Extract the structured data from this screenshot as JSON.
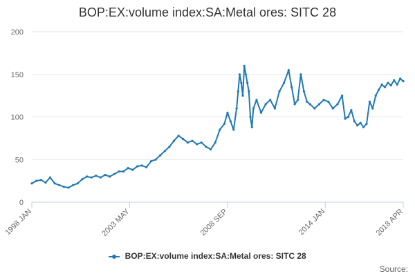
{
  "chart_data": {
    "type": "line",
    "title": "BOP:EX:volume index:SA:Metal ores: SITC 28",
    "xlabel": "",
    "ylabel": "",
    "ylim": [
      0,
      200
    ],
    "yticks": [
      0,
      50,
      100,
      150,
      200
    ],
    "x_tick_labels": [
      "1998 JAN",
      "2003 MAY",
      "2008 SEP",
      "2014 JAN",
      "2018 APR"
    ],
    "x_tick_month_index": [
      0,
      64,
      128,
      192,
      243
    ],
    "x_range_months": [
      0,
      243
    ],
    "series": [
      {
        "name": "BOP:EX:volume index:SA:Metal ores: SITC 28",
        "color": "#1f78b4",
        "points": [
          [
            0,
            22
          ],
          [
            3,
            25
          ],
          [
            6,
            26
          ],
          [
            9,
            23
          ],
          [
            12,
            29
          ],
          [
            15,
            22
          ],
          [
            18,
            20
          ],
          [
            21,
            18
          ],
          [
            24,
            17
          ],
          [
            27,
            20
          ],
          [
            30,
            22
          ],
          [
            33,
            27
          ],
          [
            36,
            30
          ],
          [
            39,
            29
          ],
          [
            42,
            31
          ],
          [
            45,
            29
          ],
          [
            48,
            32
          ],
          [
            51,
            30
          ],
          [
            54,
            33
          ],
          [
            57,
            36
          ],
          [
            60,
            36
          ],
          [
            63,
            40
          ],
          [
            66,
            38
          ],
          [
            69,
            42
          ],
          [
            72,
            43
          ],
          [
            75,
            41
          ],
          [
            78,
            48
          ],
          [
            81,
            50
          ],
          [
            84,
            55
          ],
          [
            87,
            60
          ],
          [
            90,
            65
          ],
          [
            93,
            72
          ],
          [
            96,
            78
          ],
          [
            99,
            74
          ],
          [
            102,
            70
          ],
          [
            105,
            72
          ],
          [
            108,
            68
          ],
          [
            111,
            70
          ],
          [
            114,
            65
          ],
          [
            117,
            62
          ],
          [
            120,
            70
          ],
          [
            123,
            85
          ],
          [
            126,
            92
          ],
          [
            128,
            105
          ],
          [
            130,
            95
          ],
          [
            132,
            85
          ],
          [
            134,
            110
          ],
          [
            135,
            130
          ],
          [
            136,
            150
          ],
          [
            137,
            140
          ],
          [
            138,
            125
          ],
          [
            139,
            160
          ],
          [
            140,
            150
          ],
          [
            141,
            140
          ],
          [
            142,
            130
          ],
          [
            143,
            100
          ],
          [
            144,
            88
          ],
          [
            145,
            110
          ],
          [
            147,
            120
          ],
          [
            150,
            105
          ],
          [
            153,
            115
          ],
          [
            156,
            120
          ],
          [
            159,
            110
          ],
          [
            162,
            130
          ],
          [
            165,
            140
          ],
          [
            168,
            155
          ],
          [
            170,
            135
          ],
          [
            172,
            115
          ],
          [
            174,
            120
          ],
          [
            176,
            150
          ],
          [
            178,
            130
          ],
          [
            180,
            118
          ],
          [
            182,
            115
          ],
          [
            185,
            110
          ],
          [
            188,
            115
          ],
          [
            191,
            120
          ],
          [
            194,
            118
          ],
          [
            197,
            110
          ],
          [
            200,
            115
          ],
          [
            203,
            125
          ],
          [
            205,
            98
          ],
          [
            207,
            100
          ],
          [
            209,
            108
          ],
          [
            211,
            95
          ],
          [
            213,
            90
          ],
          [
            215,
            93
          ],
          [
            217,
            88
          ],
          [
            219,
            92
          ],
          [
            221,
            118
          ],
          [
            223,
            110
          ],
          [
            225,
            125
          ],
          [
            227,
            132
          ],
          [
            229,
            138
          ],
          [
            231,
            135
          ],
          [
            233,
            140
          ],
          [
            235,
            137
          ],
          [
            237,
            143
          ],
          [
            239,
            138
          ],
          [
            241,
            145
          ],
          [
            243,
            142
          ]
        ]
      }
    ],
    "legend": "bottom-center",
    "grid": true
  },
  "legend_label": "BOP:EX:volume index:SA:Metal ores: SITC 28",
  "source_label": "Source:"
}
